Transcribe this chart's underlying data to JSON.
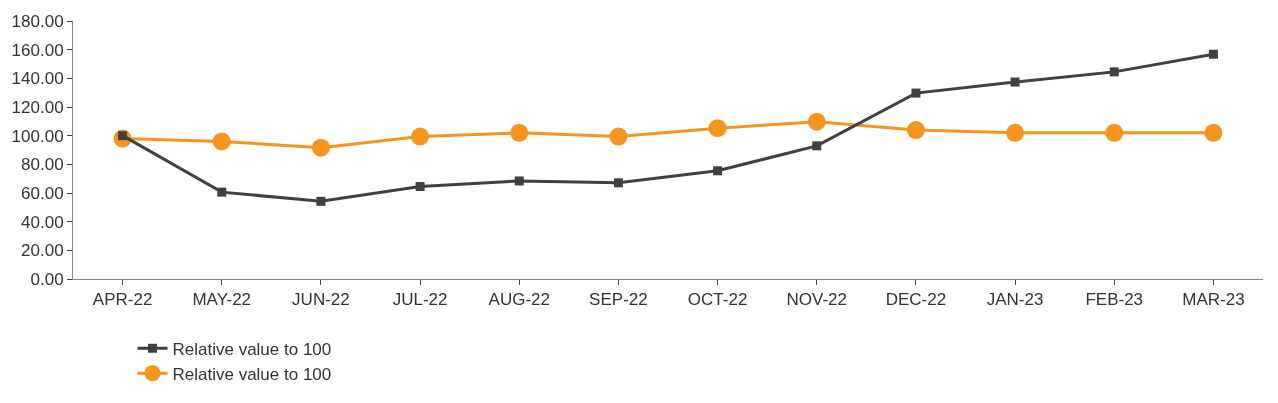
{
  "chart_data": {
    "type": "line",
    "categories": [
      "APR-22",
      "MAY-22",
      "JUN-22",
      "JUL-22",
      "AUG-22",
      "SEP-22",
      "OCT-22",
      "NOV-22",
      "DEC-22",
      "JAN-23",
      "FEB-23",
      "MAR-23"
    ],
    "series": [
      {
        "name": "Relative value to 100",
        "color": "#404040",
        "marker": "square",
        "values": [
          100,
          60.6,
          54.2,
          64.5,
          68.4,
          67.1,
          75.5,
          92.9,
          129.7,
          137.4,
          144.5,
          156.8
        ]
      },
      {
        "name": "Relative value to 100",
        "color": "#f7941d",
        "marker": "circle",
        "values": [
          98,
          96,
          91.6,
          99.4,
          102,
          99.4,
          105.2,
          109.7,
          103.9,
          102,
          102,
          102
        ]
      }
    ],
    "ylim": [
      0,
      180
    ],
    "yticks": [
      {
        "value": 0,
        "label": "0.00"
      },
      {
        "value": 20,
        "label": "20.00"
      },
      {
        "value": 40,
        "label": "40.00"
      },
      {
        "value": 60,
        "label": "60.00"
      },
      {
        "value": 80,
        "label": "80.00"
      },
      {
        "value": 100,
        "label": "100.00"
      },
      {
        "value": 120,
        "label": "120.00"
      },
      {
        "value": 140,
        "label": "140.00"
      },
      {
        "value": 160,
        "label": "160.00"
      },
      {
        "value": 180,
        "label": "180.00"
      }
    ],
    "legend": "bottom",
    "line_style": "solid"
  }
}
